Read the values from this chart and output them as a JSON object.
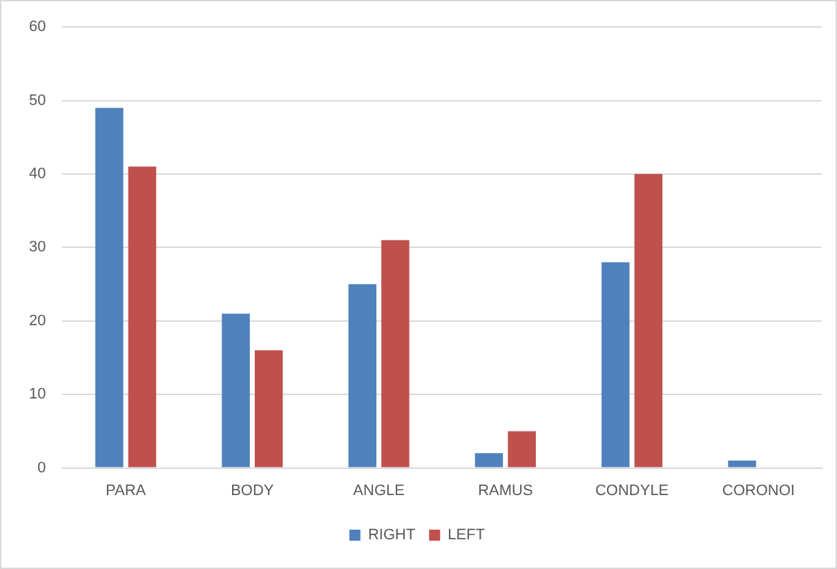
{
  "chart_data": {
    "type": "bar",
    "categories": [
      "PARA",
      "BODY",
      "ANGLE",
      "RAMUS",
      "CONDYLE",
      "CORONOI"
    ],
    "series": [
      {
        "name": "RIGHT",
        "color": "#4f81bd",
        "values": [
          49,
          21,
          25,
          2,
          28,
          1
        ]
      },
      {
        "name": "LEFT",
        "color": "#c0504d",
        "values": [
          41,
          16,
          31,
          5,
          40,
          0
        ]
      }
    ],
    "ylim": [
      0,
      60
    ],
    "yticks": [
      0,
      10,
      20,
      30,
      40,
      50,
      60
    ],
    "grid": "y",
    "legend": "bottom"
  }
}
